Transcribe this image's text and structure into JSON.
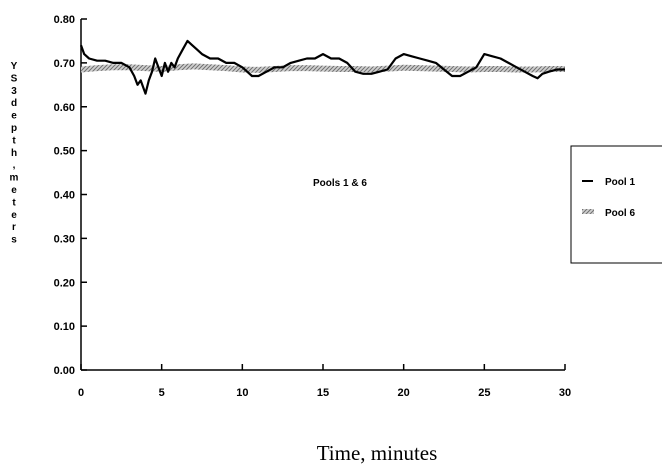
{
  "chart_data": {
    "type": "line",
    "title": "",
    "annotation": "Pools 1 & 6",
    "xlabel": "Time, minutes",
    "ylabel": "YS3 depth, meters",
    "xlim": [
      0,
      30
    ],
    "ylim": [
      0,
      0.8
    ],
    "x_ticks": [
      "0",
      "5",
      "10",
      "15",
      "20",
      "25",
      "30"
    ],
    "y_ticks": [
      "0.00",
      "0.10",
      "0.20",
      "0.30",
      "0.40",
      "0.50",
      "0.60",
      "0.70",
      "0.80"
    ],
    "grid": false,
    "legend_position": "right",
    "series": [
      {
        "name": "Pool 1",
        "color": "#000000",
        "style": "solid",
        "x": [
          0,
          0.2,
          0.5,
          1,
          1.5,
          2,
          2.5,
          3,
          3.3,
          3.5,
          3.7,
          3.9,
          4,
          4.2,
          4.4,
          4.6,
          4.8,
          5,
          5.2,
          5.4,
          5.6,
          5.8,
          6,
          6.3,
          6.6,
          6.9,
          7.2,
          7.5,
          8,
          8.5,
          9,
          9.5,
          10,
          10.3,
          10.6,
          11,
          11.5,
          12,
          12.5,
          13,
          13.5,
          14,
          14.5,
          15,
          15.5,
          16,
          16.5,
          17,
          17.5,
          18,
          18.5,
          19,
          19.5,
          20,
          20.5,
          21,
          21.5,
          22,
          22.5,
          23,
          23.5,
          24,
          24.5,
          25,
          25.5,
          26,
          26.5,
          27,
          27.5,
          28,
          28.3,
          28.6,
          29,
          29.5,
          30
        ],
        "y": [
          0.74,
          0.72,
          0.71,
          0.705,
          0.705,
          0.7,
          0.7,
          0.69,
          0.67,
          0.65,
          0.66,
          0.64,
          0.63,
          0.66,
          0.68,
          0.71,
          0.69,
          0.67,
          0.7,
          0.68,
          0.7,
          0.69,
          0.71,
          0.73,
          0.75,
          0.74,
          0.73,
          0.72,
          0.71,
          0.71,
          0.7,
          0.7,
          0.69,
          0.68,
          0.67,
          0.67,
          0.68,
          0.69,
          0.69,
          0.7,
          0.705,
          0.71,
          0.71,
          0.72,
          0.71,
          0.71,
          0.7,
          0.68,
          0.675,
          0.675,
          0.68,
          0.685,
          0.71,
          0.72,
          0.715,
          0.71,
          0.705,
          0.7,
          0.685,
          0.67,
          0.67,
          0.68,
          0.69,
          0.72,
          0.715,
          0.71,
          0.7,
          0.69,
          0.68,
          0.67,
          0.665,
          0.675,
          0.68,
          0.685,
          0.685
        ]
      },
      {
        "name": "Pool 6",
        "color": "#a8a8a8",
        "style": "hatched band",
        "x": [
          0,
          1,
          2,
          3,
          4,
          5,
          6,
          7,
          8,
          9,
          10,
          11,
          12,
          13,
          14,
          15,
          16,
          17,
          18,
          19,
          20,
          21,
          22,
          23,
          24,
          25,
          26,
          27,
          28,
          29,
          30
        ],
        "y": [
          0.685,
          0.688,
          0.69,
          0.69,
          0.688,
          0.686,
          0.69,
          0.692,
          0.69,
          0.688,
          0.685,
          0.684,
          0.686,
          0.688,
          0.688,
          0.687,
          0.686,
          0.686,
          0.685,
          0.687,
          0.689,
          0.688,
          0.687,
          0.686,
          0.685,
          0.686,
          0.686,
          0.685,
          0.685,
          0.686,
          0.686
        ]
      }
    ]
  }
}
